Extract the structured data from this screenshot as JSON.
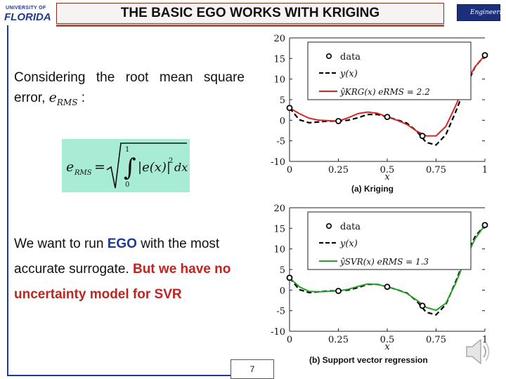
{
  "header": {
    "logo_small": "UNIVERSITY OF",
    "logo_big": "FLORIDA",
    "title": "THE BASIC EGO WORKS WITH KRIGING",
    "right_logo": "Engineering"
  },
  "text": {
    "para1_a": "Considering the root mean square error,",
    "para1_sym": "e",
    "para1_sub": "RMS",
    "para1_colon": ":",
    "formula_lhs": "e",
    "formula_lhs_sub": "RMS",
    "formula_eq": "=",
    "formula_integrand": "|e(x)|",
    "formula_pow": "2",
    "formula_dx": "dx",
    "formula_upper": "1",
    "formula_lower": "0",
    "para2_a": "We want to run ",
    "para2_ego": "EGO",
    "para2_b": " with the most accurate surrogate. ",
    "para2_red": "But we have no uncertainty model for SVR",
    "page_number": "7"
  },
  "colors": {
    "kriging": "#d62728",
    "svr": "#2ca02c",
    "truth": "#000000",
    "title_rule": "#c34a2c",
    "formula_bg": "#a8ecd6"
  },
  "chart_data": [
    {
      "type": "line",
      "caption": "(a) Kriging",
      "xlabel": "x",
      "xlim": [
        0,
        1
      ],
      "ylim": [
        -10,
        20
      ],
      "xticks": [
        "0",
        "0.25",
        "0.5",
        "0.75",
        "1"
      ],
      "yticks": [
        "-10",
        "-5",
        "0",
        "5",
        "10",
        "15",
        "20"
      ],
      "legend": {
        "placement": "top-left",
        "data": "data",
        "truth": "y(x)",
        "surrogate": "ŷKRG(x) eRMS = 2.2"
      },
      "data_points": [
        {
          "x": 0,
          "y": 3.0
        },
        {
          "x": 0.25,
          "y": -0.2
        },
        {
          "x": 0.5,
          "y": 0.8
        },
        {
          "x": 0.68,
          "y": -3.8
        },
        {
          "x": 1,
          "y": 15.8
        }
      ],
      "truth": {
        "x": [
          0,
          0.05,
          0.1,
          0.15,
          0.2,
          0.25,
          0.3,
          0.35,
          0.4,
          0.45,
          0.5,
          0.55,
          0.6,
          0.65,
          0.7,
          0.75,
          0.8,
          0.85,
          0.9,
          0.95,
          1.0
        ],
        "y": [
          3.0,
          0.1,
          -0.6,
          -0.4,
          -0.2,
          -0.2,
          0.0,
          0.6,
          1.4,
          1.4,
          0.8,
          0.1,
          -0.7,
          -2.6,
          -5.4,
          -6.0,
          -3.5,
          2.0,
          8.0,
          13.0,
          15.8
        ]
      },
      "surrogate": {
        "x": [
          0,
          0.05,
          0.1,
          0.15,
          0.2,
          0.25,
          0.3,
          0.35,
          0.4,
          0.45,
          0.5,
          0.55,
          0.6,
          0.65,
          0.7,
          0.75,
          0.8,
          0.85,
          0.9,
          0.95,
          1.0
        ],
        "y": [
          3.0,
          1.6,
          0.5,
          0.0,
          -0.1,
          -0.2,
          0.6,
          1.6,
          2.0,
          1.7,
          0.8,
          0.0,
          -1.0,
          -2.6,
          -3.8,
          -3.8,
          -1.5,
          3.5,
          9.0,
          13.0,
          15.8
        ]
      }
    },
    {
      "type": "line",
      "caption": "(b) Support vector regression",
      "xlabel": "x",
      "xlim": [
        0,
        1
      ],
      "ylim": [
        -10,
        20
      ],
      "xticks": [
        "0",
        "0.25",
        "0.5",
        "0.75",
        "1"
      ],
      "yticks": [
        "-10",
        "-5",
        "0",
        "5",
        "10",
        "15",
        "20"
      ],
      "legend": {
        "placement": "top-left",
        "data": "data",
        "truth": "y(x)",
        "surrogate": "ŷSVR(x) eRMS = 1.3"
      },
      "data_points": [
        {
          "x": 0,
          "y": 3.0
        },
        {
          "x": 0.25,
          "y": -0.2
        },
        {
          "x": 0.5,
          "y": 0.8
        },
        {
          "x": 0.68,
          "y": -3.8
        },
        {
          "x": 1,
          "y": 15.8
        }
      ],
      "truth": {
        "x": [
          0,
          0.05,
          0.1,
          0.15,
          0.2,
          0.25,
          0.3,
          0.35,
          0.4,
          0.45,
          0.5,
          0.55,
          0.6,
          0.65,
          0.7,
          0.75,
          0.8,
          0.85,
          0.9,
          0.95,
          1.0
        ],
        "y": [
          3.0,
          0.1,
          -0.6,
          -0.4,
          -0.2,
          -0.2,
          0.0,
          0.6,
          1.4,
          1.4,
          0.8,
          0.1,
          -0.7,
          -2.6,
          -5.4,
          -6.0,
          -3.5,
          2.0,
          8.0,
          13.0,
          15.8
        ]
      },
      "surrogate": {
        "x": [
          0,
          0.05,
          0.1,
          0.15,
          0.2,
          0.25,
          0.3,
          0.35,
          0.4,
          0.45,
          0.5,
          0.55,
          0.6,
          0.65,
          0.7,
          0.75,
          0.8,
          0.85,
          0.9,
          0.95,
          1.0
        ],
        "y": [
          3.0,
          0.8,
          -0.3,
          -0.4,
          -0.3,
          -0.2,
          0.2,
          0.9,
          1.5,
          1.4,
          0.8,
          0.1,
          -0.8,
          -2.4,
          -4.2,
          -4.9,
          -3.2,
          1.6,
          7.5,
          12.5,
          15.8
        ]
      }
    }
  ]
}
